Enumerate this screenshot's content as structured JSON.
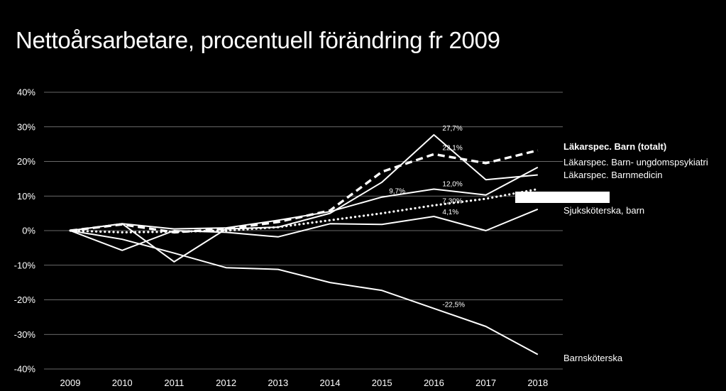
{
  "chart_data": {
    "type": "line",
    "title": "Nettoårsarbetare, procentuell förändring fr 2009",
    "xlabel": "",
    "ylabel": "",
    "categories": [
      "2009",
      "2010",
      "2011",
      "2012",
      "2013",
      "2014",
      "2015",
      "2016",
      "2017",
      "2018"
    ],
    "ylim": [
      -40,
      40
    ],
    "yticks": [
      -40,
      -30,
      -20,
      -10,
      0,
      10,
      20,
      30,
      40
    ],
    "ytick_labels": [
      "-40%",
      "-30%",
      "-20%",
      "-10%",
      "0%",
      "10%",
      "20%",
      "30%",
      "40%"
    ],
    "grid": true,
    "legend_placement": "right, at line ends",
    "series": [
      {
        "name": "Läkarspec. Barn (totalt)",
        "style": "dashed-bold",
        "values": [
          0,
          1.8,
          -0.5,
          0.5,
          2.5,
          5.8,
          17.0,
          22.1,
          19.5,
          23.2
        ]
      },
      {
        "name": "Läkarspec. Barn- ungdomspsykiatri",
        "style": "solid",
        "values": [
          0,
          2.0,
          -9.0,
          0.5,
          1.0,
          5.0,
          14.0,
          27.7,
          14.7,
          16.1
        ]
      },
      {
        "name": "Läkarspec. Barnmedicin",
        "style": "solid",
        "values": [
          0,
          2.0,
          0.5,
          0.8,
          3.0,
          5.5,
          9.7,
          12.0,
          10.3,
          18.3
        ]
      },
      {
        "name": "Sjuksköterska, barn",
        "style": "dotted",
        "values": [
          0,
          -0.5,
          -0.3,
          0.0,
          1.0,
          3.0,
          5.0,
          7.3,
          9.2,
          12.0
        ]
      },
      {
        "name": "",
        "style": "solid",
        "values": [
          0,
          -5.7,
          0.0,
          -0.5,
          -1.8,
          2.0,
          1.8,
          4.1,
          0.0,
          6.2
        ]
      },
      {
        "name": "Barnsköterska",
        "style": "solid",
        "values": [
          0,
          -2.5,
          -6.5,
          -10.7,
          -11.2,
          -15.0,
          -17.3,
          -22.5,
          -27.7,
          -35.8
        ]
      }
    ],
    "data_labels": [
      {
        "text": "27,7%",
        "x": "2016",
        "y": 27.7
      },
      {
        "text": "22,1%",
        "x": "2016",
        "y": 22.1
      },
      {
        "text": "12,0%",
        "x": "2016",
        "y": 12.0
      },
      {
        "text": "9,7%",
        "x": "2015",
        "y": 9.7
      },
      {
        "text": "7,30%",
        "x": "2016",
        "y": 7.3
      },
      {
        "text": "4,1%",
        "x": "2016",
        "y": 4.1
      },
      {
        "text": "-22,5%",
        "x": "2016",
        "y": -22.5
      }
    ]
  }
}
